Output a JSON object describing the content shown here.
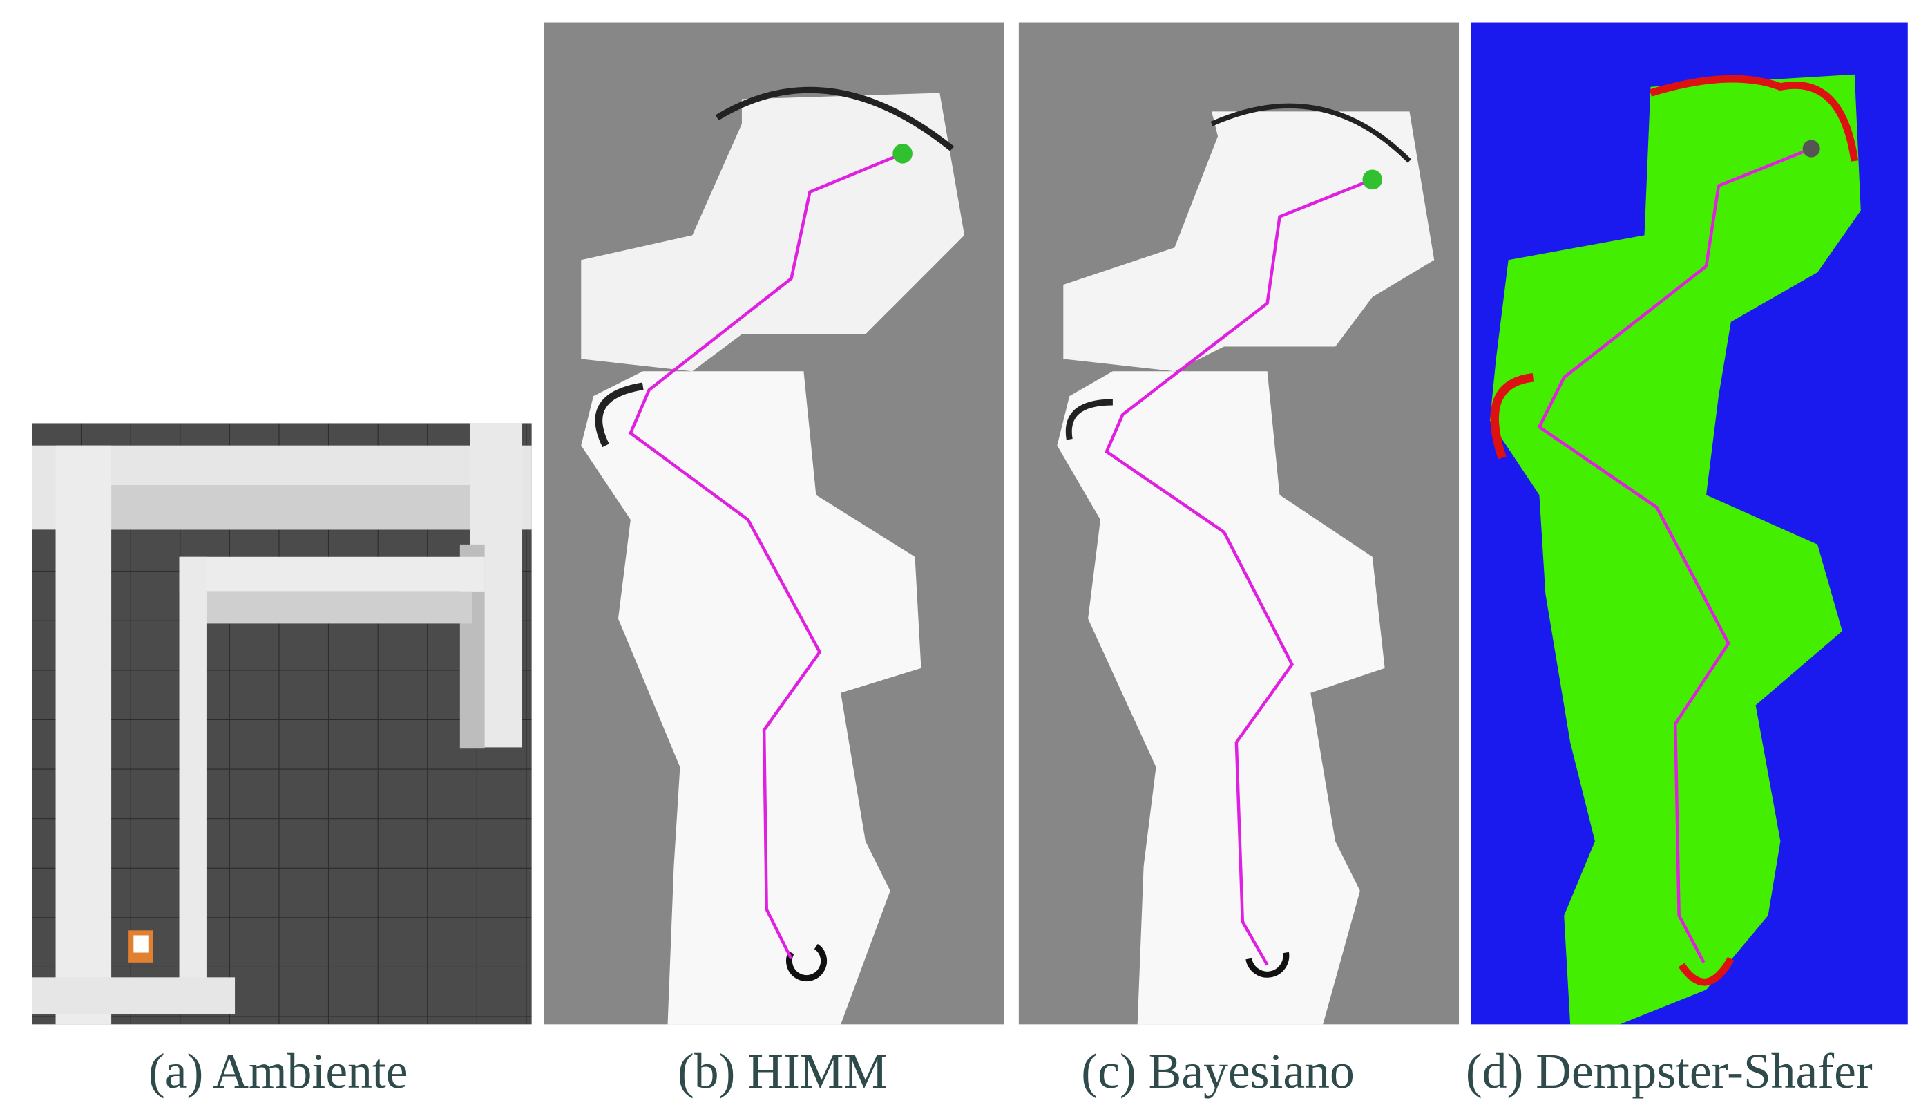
{
  "captions": [
    "(a) Ambiente",
    "(b) HIMM",
    "(c) Bayesiano",
    "(d) Dempster-Shafer"
  ]
}
